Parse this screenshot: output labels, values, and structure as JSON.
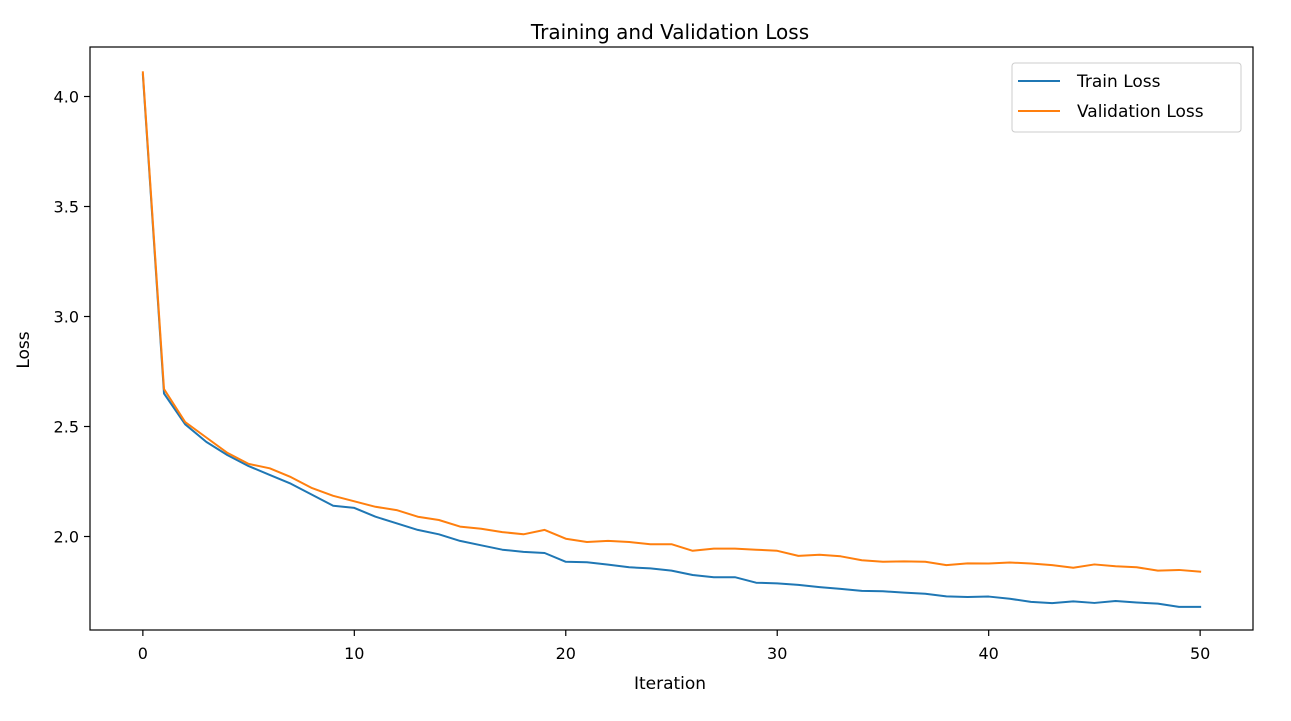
{
  "chart_data": {
    "type": "line",
    "title": "Training and Validation Loss",
    "xlabel": "Iteration",
    "ylabel": "Loss",
    "xlim": [
      -2.5,
      52.5
    ],
    "ylim": [
      1.575,
      4.225
    ],
    "xticks": [
      0,
      10,
      20,
      30,
      40,
      50
    ],
    "yticks": [
      2.0,
      2.5,
      3.0,
      3.5,
      4.0
    ],
    "xtick_labels": [
      "0",
      "10",
      "20",
      "30",
      "40",
      "50"
    ],
    "ytick_labels": [
      "2.0",
      "2.5",
      "3.0",
      "3.5",
      "4.0"
    ],
    "grid": false,
    "legend_position": "top-right",
    "x": [
      0,
      1,
      2,
      3,
      4,
      5,
      6,
      7,
      8,
      9,
      10,
      11,
      12,
      13,
      14,
      15,
      16,
      17,
      18,
      19,
      20,
      21,
      22,
      23,
      24,
      25,
      26,
      27,
      28,
      29,
      30,
      31,
      32,
      33,
      34,
      35,
      36,
      37,
      38,
      39,
      40,
      41,
      42,
      43,
      44,
      45,
      46,
      47,
      48,
      49,
      50
    ],
    "series": [
      {
        "name": "Train Loss",
        "color": "#1f77b4",
        "values": [
          4.1,
          2.65,
          2.51,
          2.43,
          2.37,
          2.32,
          2.28,
          2.24,
          2.19,
          2.14,
          2.13,
          2.09,
          2.06,
          2.03,
          2.01,
          1.98,
          1.96,
          1.94,
          1.93,
          1.925,
          1.885,
          1.883,
          1.872,
          1.86,
          1.855,
          1.845,
          1.825,
          1.815,
          1.815,
          1.79,
          1.787,
          1.78,
          1.77,
          1.762,
          1.753,
          1.751,
          1.745,
          1.74,
          1.728,
          1.725,
          1.727,
          1.717,
          1.703,
          1.697,
          1.705,
          1.698,
          1.707,
          1.7,
          1.695,
          1.68,
          1.68
        ]
      },
      {
        "name": "Validation Loss",
        "color": "#ff7f0e",
        "values": [
          4.11,
          2.67,
          2.52,
          2.45,
          2.38,
          2.33,
          2.31,
          2.27,
          2.22,
          2.185,
          2.16,
          2.135,
          2.12,
          2.09,
          2.075,
          2.045,
          2.035,
          2.02,
          2.01,
          2.03,
          1.99,
          1.975,
          1.98,
          1.975,
          1.965,
          1.965,
          1.935,
          1.945,
          1.945,
          1.94,
          1.935,
          1.912,
          1.917,
          1.91,
          1.892,
          1.885,
          1.887,
          1.885,
          1.87,
          1.878,
          1.877,
          1.882,
          1.877,
          1.87,
          1.858,
          1.873,
          1.865,
          1.86,
          1.845,
          1.848,
          1.84
        ]
      }
    ]
  }
}
